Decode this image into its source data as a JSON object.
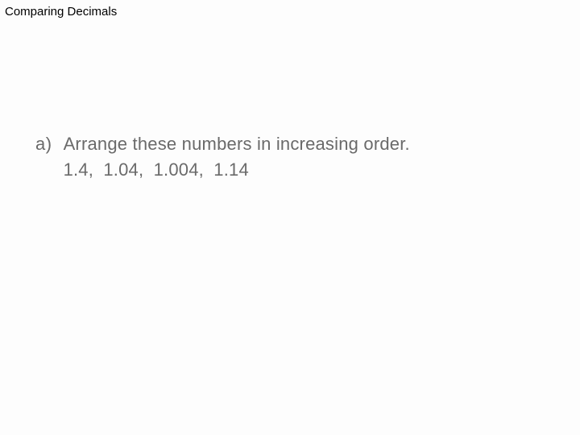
{
  "page": {
    "title": "Comparing Decimals",
    "title_fontsize": 15,
    "title_color": "#000000",
    "background_color": "#fdfdfd"
  },
  "question": {
    "label": "a)",
    "prompt": "Arrange these numbers in increasing order.",
    "numbers_line": "1.4,   1.04,   1.004,   1.14",
    "numbers": [
      1.4,
      1.04,
      1.004,
      1.14
    ],
    "text_color": "#6a6a6a",
    "fontsize": 22,
    "font_weight": 300
  }
}
